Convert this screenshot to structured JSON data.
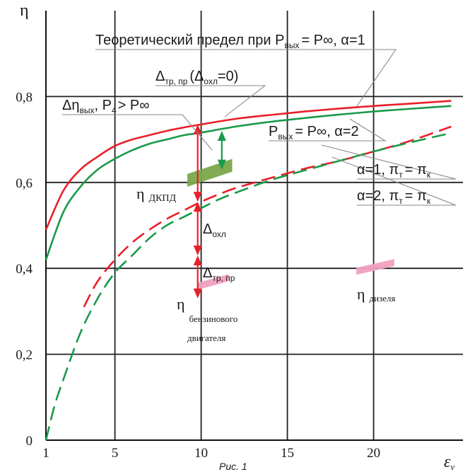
{
  "chart_data": {
    "type": "line",
    "title": "",
    "caption": "Рис. 1",
    "ylabel": "η",
    "xlabel": "ε",
    "xlabel_sub": "v",
    "xlim": [
      1,
      25
    ],
    "ylim": [
      0,
      1.0
    ],
    "x_ticks": [
      1,
      5,
      10,
      15,
      20
    ],
    "y_ticks": [
      0,
      0.2,
      0.4,
      0.6,
      0.8
    ],
    "x_tick_labels": [
      "1",
      "5",
      "10",
      "15",
      "20"
    ],
    "y_tick_labels": [
      "0",
      "0,2",
      "0,4",
      "0,6",
      "0,8"
    ],
    "grid": true,
    "series": [
      {
        "color": "#e8202a",
        "style": "solid",
        "x": [
          1,
          2,
          3,
          4,
          5,
          6,
          7,
          8,
          9,
          10,
          12,
          14,
          16,
          18,
          20,
          22,
          24.5
        ],
        "y": [
          0.49,
          0.58,
          0.63,
          0.66,
          0.685,
          0.7,
          0.71,
          0.72,
          0.728,
          0.735,
          0.748,
          0.757,
          0.765,
          0.772,
          0.778,
          0.783,
          0.79
        ]
      },
      {
        "color": "#1a9a4a",
        "style": "solid",
        "x": [
          1,
          2,
          3,
          4,
          5,
          6,
          7,
          8,
          9,
          10,
          12,
          14,
          16,
          18,
          20,
          22,
          24.5
        ],
        "y": [
          0.42,
          0.53,
          0.59,
          0.63,
          0.655,
          0.675,
          0.69,
          0.7,
          0.71,
          0.716,
          0.73,
          0.741,
          0.75,
          0.758,
          0.765,
          0.771,
          0.778
        ]
      },
      {
        "color": "#e8202a",
        "style": "dashed",
        "x": [
          3.2,
          4,
          5,
          6,
          7,
          8,
          9,
          10,
          11,
          12,
          14,
          16,
          18,
          20,
          22,
          24.5
        ],
        "y": [
          0.31,
          0.37,
          0.42,
          0.46,
          0.49,
          0.515,
          0.535,
          0.555,
          0.572,
          0.587,
          0.61,
          0.632,
          0.65,
          0.672,
          0.695,
          0.73
        ]
      },
      {
        "color": "#1a9a4a",
        "style": "dashed",
        "x": [
          1,
          1.5,
          2,
          3,
          4,
          5,
          6,
          7,
          8,
          9,
          10,
          11,
          12,
          14,
          16,
          18,
          20,
          22,
          24.5
        ],
        "y": [
          0.0,
          0.08,
          0.14,
          0.25,
          0.33,
          0.39,
          0.43,
          0.47,
          0.5,
          0.52,
          0.54,
          0.56,
          0.576,
          0.605,
          0.628,
          0.65,
          0.672,
          0.692,
          0.715
        ]
      }
    ],
    "annotations": {
      "theoretical_limit": {
        "text": "Теоретический предел при P",
        "sub": "вых",
        "rest": "= P",
        "rest2": ", α=1"
      },
      "delta_tr_pr_cool": {
        "text": "Δ",
        "sub": "тр, пр",
        "rest": "(Δ",
        "sub2": "охл",
        "rest2": "=0)"
      },
      "delta_eta_out": {
        "text": "Δη",
        "sub": "вых",
        "rest": ", P",
        "sub2": "4",
        "rest2": "> P"
      },
      "p_out_alpha2": {
        "text": "P",
        "sub": "вых",
        "rest": "= P",
        "rest2": ", α=2"
      },
      "alpha1_pi": {
        "text": "α=1, π",
        "sub": "т",
        "rest": "= π",
        "sub2": "к"
      },
      "alpha2_pi": {
        "text": "α=2, π",
        "sub": "т",
        "rest": "= π",
        "sub2": "к"
      },
      "eta_dkpd": {
        "text": "η",
        "sub": "ДКПД"
      },
      "delta_cool": {
        "text": "Δ",
        "sub": "охл"
      },
      "delta_tr_pr": {
        "text": "Δ",
        "sub": "тр, пр"
      },
      "eta_gasoline": {
        "text": "η",
        "sub": "бензинового",
        "line2": "двигателя"
      },
      "eta_diesel": {
        "text": "η",
        "sub": "дизеля"
      }
    },
    "markers": {
      "dkpd_band": {
        "color": "#7aa84a",
        "x": [
          9.2,
          11.8
        ],
        "y": [
          0.59,
          0.625
        ]
      },
      "gasoline_band": {
        "color": "#f0a0c0",
        "x": [
          9.8,
          11.6
        ],
        "y": [
          0.35,
          0.37
        ]
      },
      "diesel_band": {
        "color": "#f0a0c0",
        "x": [
          19,
          21.2
        ],
        "y": [
          0.385,
          0.405
        ]
      },
      "red_arrows": [
        [
          9.8,
          0.735,
          0.555
        ],
        [
          9.8,
          0.555,
          0.43
        ],
        [
          9.8,
          0.43,
          0.33
        ]
      ],
      "green_arrow": [
        11.2,
        0.72,
        0.63
      ]
    }
  }
}
